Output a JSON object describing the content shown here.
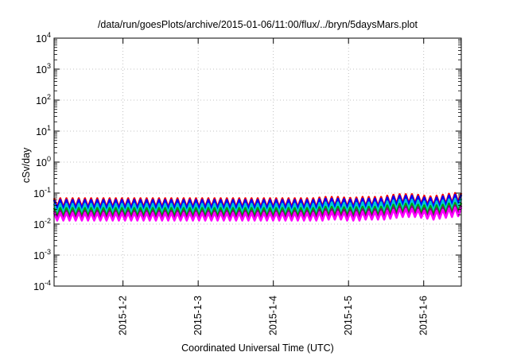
{
  "chart_data": {
    "type": "line",
    "title": "/data/run/goesPlots/archive/2015-01-06/11:00/flux/../bryn/5daysMars.plot",
    "xlabel": "Coordinated Universal Time (UTC)",
    "ylabel": "cSv/day",
    "yscale": "log",
    "ylim": [
      0.0001,
      10000
    ],
    "y_ticks": [
      {
        "base": "10",
        "exp": "-4"
      },
      {
        "base": "10",
        "exp": "-3"
      },
      {
        "base": "10",
        "exp": "-2"
      },
      {
        "base": "10",
        "exp": "-1"
      },
      {
        "base": "10",
        "exp": "0"
      },
      {
        "base": "10",
        "exp": "1"
      },
      {
        "base": "10",
        "exp": "2"
      },
      {
        "base": "10",
        "exp": "3"
      },
      {
        "base": "10",
        "exp": "4"
      }
    ],
    "xlim": [
      "2015-01-01T02:00",
      "2015-01-06T12:00"
    ],
    "x_ticks": [
      {
        "label": "2015-1-2",
        "date": "2015-01-02"
      },
      {
        "label": "2015-1-3",
        "date": "2015-01-03"
      },
      {
        "label": "2015-1-4",
        "date": "2015-01-04"
      },
      {
        "label": "2015-1-5",
        "date": "2015-01-05"
      },
      {
        "label": "2015-1-6",
        "date": "2015-01-06"
      }
    ],
    "grid": true,
    "pattern": "sawtooth, period about 3 hours",
    "series": [
      {
        "color": "#ff0000",
        "values": [
          0.068,
          0.035,
          0.068,
          0.035,
          0.068,
          0.035,
          0.068,
          0.035,
          0.068,
          0.035,
          0.068,
          0.035,
          0.068,
          0.035,
          0.068,
          0.035,
          0.068,
          0.035,
          0.068,
          0.035,
          0.068,
          0.035,
          0.068,
          0.035,
          0.068,
          0.035,
          0.068,
          0.035,
          0.068,
          0.035,
          0.068,
          0.035,
          0.068,
          0.035,
          0.068,
          0.035,
          0.068,
          0.035,
          0.068,
          0.035,
          0.068,
          0.035,
          0.068,
          0.035,
          0.068,
          0.035,
          0.068,
          0.035,
          0.068,
          0.035,
          0.068,
          0.035,
          0.068,
          0.035,
          0.068,
          0.035,
          0.068,
          0.035,
          0.068,
          0.035,
          0.068,
          0.035,
          0.068,
          0.035,
          0.068,
          0.035,
          0.068,
          0.035,
          0.068,
          0.035,
          0.068,
          0.035,
          0.068,
          0.035,
          0.068,
          0.035,
          0.068,
          0.035,
          0.068,
          0.035,
          0.068,
          0.035,
          0.068,
          0.035,
          0.068,
          0.035,
          0.072,
          0.037,
          0.075,
          0.038,
          0.075,
          0.038,
          0.075,
          0.038,
          0.072,
          0.037,
          0.07,
          0.036,
          0.072,
          0.037,
          0.075,
          0.038,
          0.075,
          0.038,
          0.075,
          0.038,
          0.075,
          0.038,
          0.082,
          0.042,
          0.088,
          0.045,
          0.092,
          0.047,
          0.092,
          0.047,
          0.092,
          0.047,
          0.088,
          0.045,
          0.082,
          0.042,
          0.078,
          0.04,
          0.082,
          0.042,
          0.088,
          0.045,
          0.095,
          0.048,
          0.1,
          0.051,
          0.1
        ]
      },
      {
        "color": "#0000ff",
        "values": [
          0.06,
          0.031,
          0.06,
          0.031,
          0.06,
          0.031,
          0.06,
          0.031,
          0.06,
          0.031,
          0.06,
          0.031,
          0.06,
          0.031,
          0.06,
          0.031,
          0.06,
          0.031,
          0.06,
          0.031,
          0.06,
          0.031,
          0.06,
          0.031,
          0.06,
          0.031,
          0.06,
          0.031,
          0.06,
          0.031,
          0.06,
          0.031,
          0.06,
          0.031,
          0.06,
          0.031,
          0.06,
          0.031,
          0.06,
          0.031,
          0.06,
          0.031,
          0.06,
          0.031,
          0.06,
          0.031,
          0.06,
          0.031,
          0.06,
          0.031,
          0.06,
          0.031,
          0.06,
          0.031,
          0.06,
          0.031,
          0.06,
          0.031,
          0.06,
          0.031,
          0.06,
          0.031,
          0.06,
          0.031,
          0.06,
          0.031,
          0.06,
          0.031,
          0.06,
          0.031,
          0.06,
          0.031,
          0.06,
          0.031,
          0.06,
          0.031,
          0.06,
          0.031,
          0.06,
          0.031,
          0.06,
          0.031,
          0.06,
          0.031,
          0.06,
          0.031,
          0.064,
          0.033,
          0.066,
          0.034,
          0.066,
          0.034,
          0.066,
          0.034,
          0.064,
          0.033,
          0.062,
          0.032,
          0.064,
          0.033,
          0.066,
          0.034,
          0.066,
          0.034,
          0.066,
          0.034,
          0.066,
          0.034,
          0.072,
          0.037,
          0.078,
          0.04,
          0.082,
          0.042,
          0.082,
          0.042,
          0.082,
          0.042,
          0.078,
          0.04,
          0.072,
          0.037,
          0.069,
          0.035,
          0.072,
          0.037,
          0.078,
          0.04,
          0.084,
          0.043,
          0.088,
          0.045,
          0.088
        ]
      },
      {
        "color": "#00cccc",
        "values": [
          0.045,
          0.024,
          0.045,
          0.024,
          0.045,
          0.024,
          0.045,
          0.024,
          0.045,
          0.024,
          0.045,
          0.024,
          0.045,
          0.024,
          0.045,
          0.024,
          0.045,
          0.024,
          0.045,
          0.024,
          0.045,
          0.024,
          0.045,
          0.024,
          0.045,
          0.024,
          0.045,
          0.024,
          0.045,
          0.024,
          0.045,
          0.024,
          0.045,
          0.024,
          0.045,
          0.024,
          0.045,
          0.024,
          0.045,
          0.024,
          0.045,
          0.024,
          0.045,
          0.024,
          0.045,
          0.024,
          0.045,
          0.024,
          0.045,
          0.024,
          0.045,
          0.024,
          0.045,
          0.024,
          0.045,
          0.024,
          0.045,
          0.024,
          0.045,
          0.024,
          0.045,
          0.024,
          0.045,
          0.024,
          0.045,
          0.024,
          0.045,
          0.024,
          0.045,
          0.024,
          0.045,
          0.024,
          0.045,
          0.024,
          0.045,
          0.024,
          0.045,
          0.024,
          0.045,
          0.024,
          0.045,
          0.024,
          0.045,
          0.024,
          0.045,
          0.024,
          0.048,
          0.025,
          0.05,
          0.026,
          0.05,
          0.026,
          0.05,
          0.026,
          0.048,
          0.025,
          0.047,
          0.024,
          0.048,
          0.025,
          0.05,
          0.026,
          0.05,
          0.026,
          0.05,
          0.026,
          0.05,
          0.026,
          0.054,
          0.028,
          0.058,
          0.03,
          0.061,
          0.031,
          0.061,
          0.031,
          0.061,
          0.031,
          0.058,
          0.03,
          0.054,
          0.028,
          0.052,
          0.027,
          0.054,
          0.028,
          0.058,
          0.03,
          0.063,
          0.032,
          0.066,
          0.034,
          0.066
        ]
      },
      {
        "color": "#00a000",
        "values": [
          0.033,
          0.018,
          0.033,
          0.018,
          0.033,
          0.018,
          0.033,
          0.018,
          0.033,
          0.018,
          0.033,
          0.018,
          0.033,
          0.018,
          0.033,
          0.018,
          0.033,
          0.018,
          0.033,
          0.018,
          0.033,
          0.018,
          0.033,
          0.018,
          0.033,
          0.018,
          0.033,
          0.018,
          0.033,
          0.018,
          0.033,
          0.018,
          0.033,
          0.018,
          0.033,
          0.018,
          0.033,
          0.018,
          0.033,
          0.018,
          0.033,
          0.018,
          0.033,
          0.018,
          0.033,
          0.018,
          0.033,
          0.018,
          0.033,
          0.018,
          0.033,
          0.018,
          0.033,
          0.018,
          0.033,
          0.018,
          0.033,
          0.018,
          0.033,
          0.018,
          0.033,
          0.018,
          0.033,
          0.018,
          0.033,
          0.018,
          0.033,
          0.018,
          0.033,
          0.018,
          0.033,
          0.018,
          0.033,
          0.018,
          0.033,
          0.018,
          0.033,
          0.018,
          0.033,
          0.018,
          0.033,
          0.018,
          0.033,
          0.018,
          0.033,
          0.018,
          0.035,
          0.019,
          0.036,
          0.019,
          0.036,
          0.019,
          0.036,
          0.019,
          0.035,
          0.019,
          0.034,
          0.018,
          0.035,
          0.019,
          0.036,
          0.019,
          0.036,
          0.019,
          0.036,
          0.019,
          0.036,
          0.019,
          0.04,
          0.021,
          0.042,
          0.022,
          0.045,
          0.023,
          0.045,
          0.023,
          0.045,
          0.023,
          0.042,
          0.022,
          0.04,
          0.021,
          0.038,
          0.02,
          0.04,
          0.021,
          0.042,
          0.022,
          0.046,
          0.024,
          0.048,
          0.025,
          0.048
        ]
      },
      {
        "color": "#800080",
        "values": [
          0.027,
          0.015,
          0.027,
          0.015,
          0.027,
          0.015,
          0.027,
          0.015,
          0.027,
          0.015,
          0.027,
          0.015,
          0.027,
          0.015,
          0.027,
          0.015,
          0.027,
          0.015,
          0.027,
          0.015,
          0.027,
          0.015,
          0.027,
          0.015,
          0.027,
          0.015,
          0.027,
          0.015,
          0.027,
          0.015,
          0.027,
          0.015,
          0.027,
          0.015,
          0.027,
          0.015,
          0.027,
          0.015,
          0.027,
          0.015,
          0.027,
          0.015,
          0.027,
          0.015,
          0.027,
          0.015,
          0.027,
          0.015,
          0.027,
          0.015,
          0.027,
          0.015,
          0.027,
          0.015,
          0.027,
          0.015,
          0.027,
          0.015,
          0.027,
          0.015,
          0.027,
          0.015,
          0.027,
          0.015,
          0.027,
          0.015,
          0.027,
          0.015,
          0.027,
          0.015,
          0.027,
          0.015,
          0.027,
          0.015,
          0.027,
          0.015,
          0.027,
          0.015,
          0.027,
          0.015,
          0.027,
          0.015,
          0.027,
          0.015,
          0.027,
          0.015,
          0.029,
          0.016,
          0.03,
          0.016,
          0.03,
          0.016,
          0.03,
          0.016,
          0.029,
          0.016,
          0.028,
          0.015,
          0.029,
          0.016,
          0.03,
          0.016,
          0.03,
          0.016,
          0.03,
          0.016,
          0.03,
          0.016,
          0.032,
          0.017,
          0.035,
          0.018,
          0.037,
          0.019,
          0.037,
          0.019,
          0.037,
          0.019,
          0.035,
          0.018,
          0.032,
          0.017,
          0.031,
          0.016,
          0.032,
          0.017,
          0.035,
          0.018,
          0.038,
          0.02,
          0.04,
          0.021,
          0.04
        ]
      },
      {
        "color": "#ff00ff",
        "values": [
          0.023,
          0.013,
          0.023,
          0.013,
          0.023,
          0.013,
          0.023,
          0.013,
          0.023,
          0.013,
          0.023,
          0.013,
          0.023,
          0.013,
          0.023,
          0.013,
          0.023,
          0.013,
          0.023,
          0.013,
          0.023,
          0.013,
          0.023,
          0.013,
          0.023,
          0.013,
          0.023,
          0.013,
          0.023,
          0.013,
          0.023,
          0.013,
          0.023,
          0.013,
          0.023,
          0.013,
          0.023,
          0.013,
          0.023,
          0.013,
          0.023,
          0.013,
          0.023,
          0.013,
          0.023,
          0.013,
          0.023,
          0.013,
          0.023,
          0.013,
          0.023,
          0.013,
          0.023,
          0.013,
          0.023,
          0.013,
          0.023,
          0.013,
          0.023,
          0.013,
          0.023,
          0.013,
          0.023,
          0.013,
          0.023,
          0.013,
          0.023,
          0.013,
          0.023,
          0.013,
          0.023,
          0.013,
          0.023,
          0.013,
          0.023,
          0.013,
          0.023,
          0.013,
          0.023,
          0.013,
          0.023,
          0.013,
          0.023,
          0.013,
          0.023,
          0.013,
          0.024,
          0.013,
          0.025,
          0.014,
          0.025,
          0.014,
          0.025,
          0.014,
          0.024,
          0.013,
          0.024,
          0.013,
          0.024,
          0.013,
          0.025,
          0.014,
          0.025,
          0.014,
          0.025,
          0.014,
          0.025,
          0.014,
          0.027,
          0.015,
          0.029,
          0.016,
          0.031,
          0.017,
          0.031,
          0.017,
          0.031,
          0.017,
          0.029,
          0.016,
          0.027,
          0.015,
          0.026,
          0.014,
          0.027,
          0.015,
          0.029,
          0.016,
          0.032,
          0.017,
          0.034,
          0.018,
          0.034
        ]
      }
    ]
  }
}
